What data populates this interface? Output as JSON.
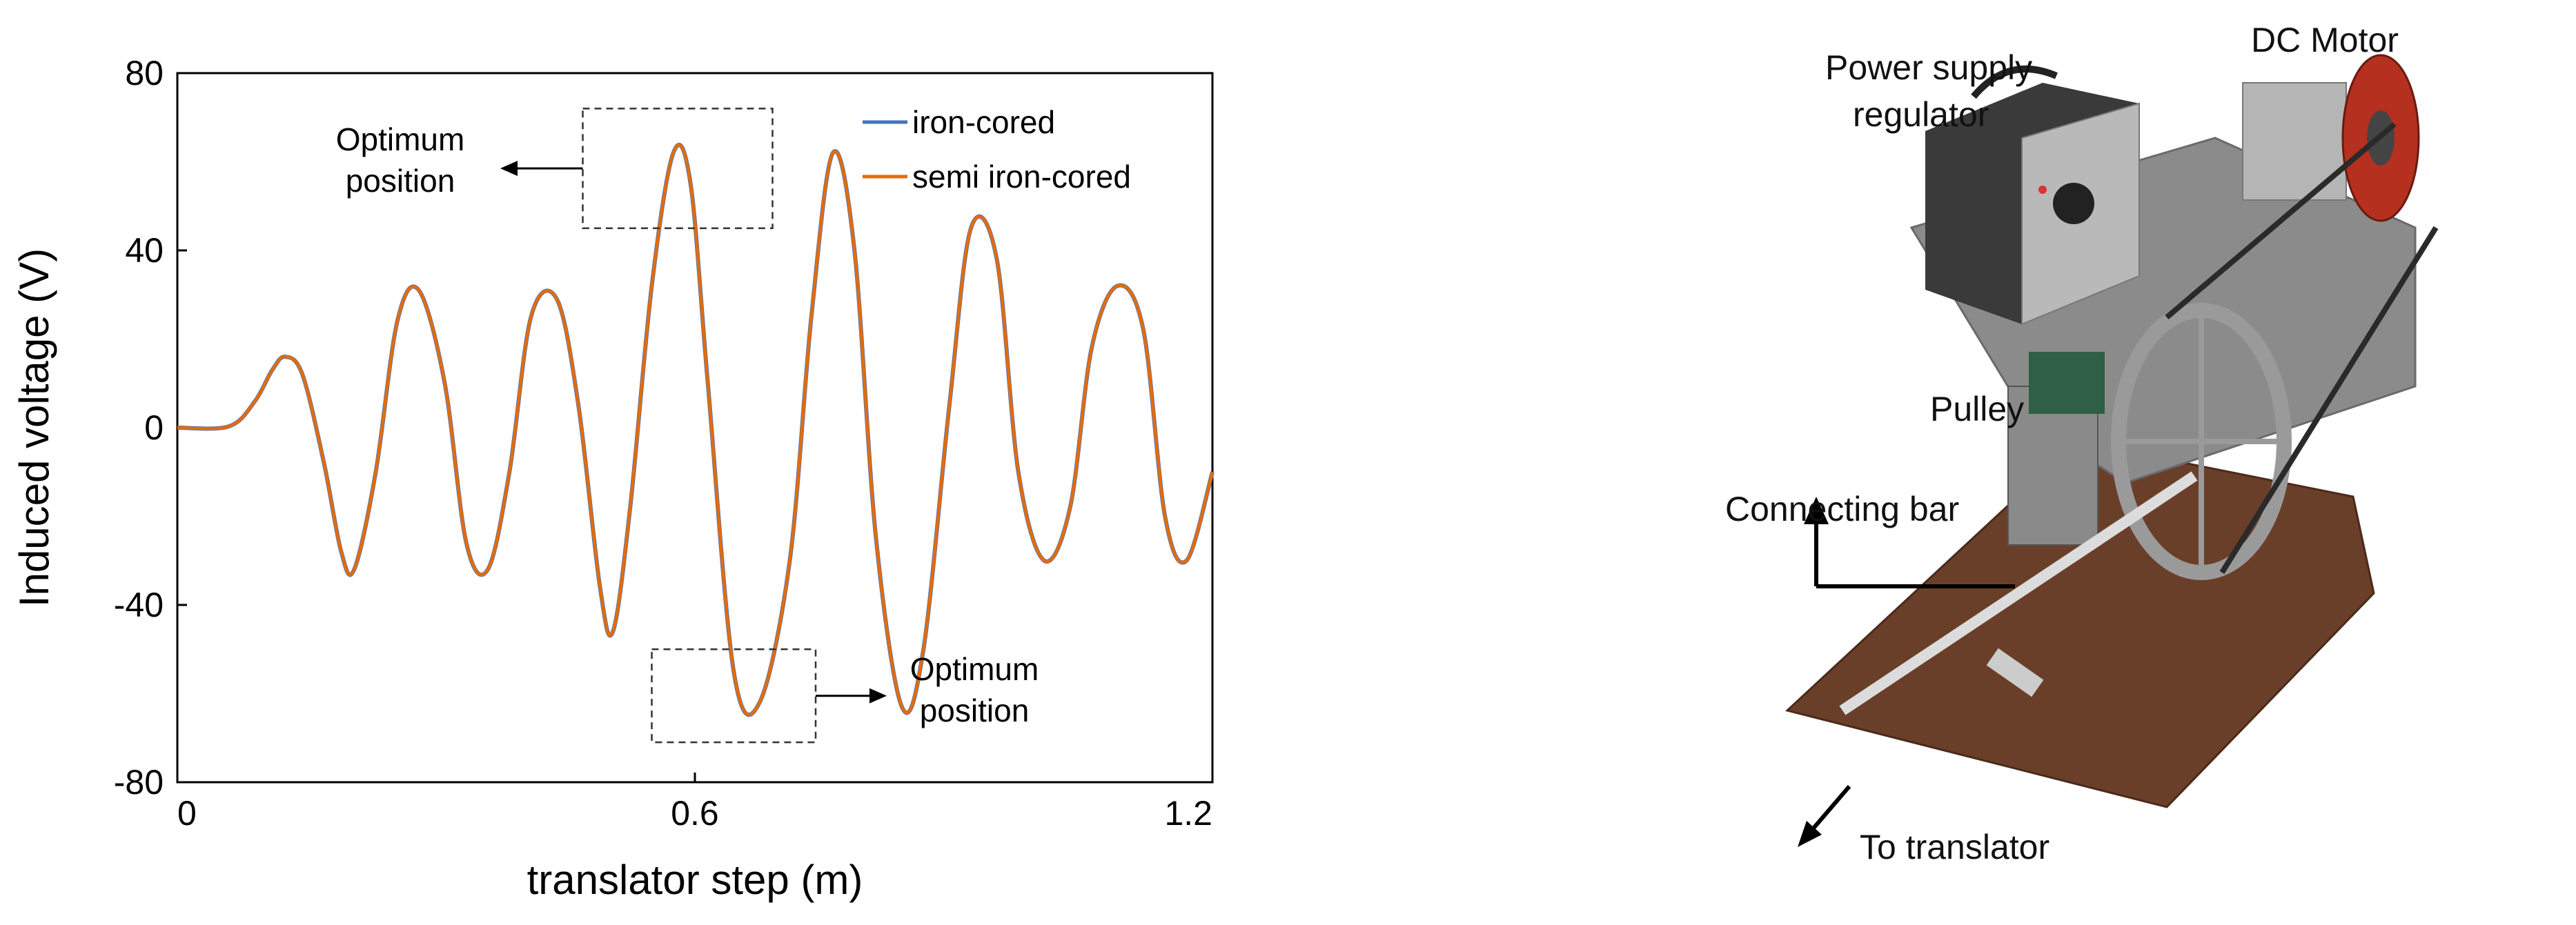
{
  "chart_data": {
    "type": "line",
    "xlabel": "translator step (m)",
    "ylabel": "Induced voltage (V)",
    "xlim": [
      0,
      1.2
    ],
    "ylim": [
      -80,
      80
    ],
    "x_ticks": [
      0,
      0.6,
      1.2
    ],
    "x_tick_labels": [
      "0",
      "0.6",
      "1.2"
    ],
    "y_ticks": [
      -80,
      -40,
      0,
      40,
      80
    ],
    "y_tick_labels": [
      "-80",
      "-40",
      "0",
      "40",
      "80"
    ],
    "grid": false,
    "legend_position": "top-right",
    "series": [
      {
        "name": "iron-cored",
        "color": "#4472C4",
        "x": [
          0,
          0.06,
          0.09,
          0.11,
          0.125,
          0.145,
          0.17,
          0.19,
          0.205,
          0.23,
          0.255,
          0.28,
          0.31,
          0.335,
          0.36,
          0.385,
          0.41,
          0.44,
          0.465,
          0.49,
          0.505,
          0.525,
          0.55,
          0.575,
          0.595,
          0.615,
          0.645,
          0.675,
          0.71,
          0.735,
          0.76,
          0.785,
          0.81,
          0.84,
          0.865,
          0.895,
          0.92,
          0.95,
          0.975,
          1.005,
          1.035,
          1.06,
          1.09,
          1.12,
          1.145,
          1.17,
          1.2
        ],
        "y": [
          0,
          0.3,
          6,
          13,
          16,
          12,
          -8,
          -28,
          -32,
          -10,
          24,
          31,
          10,
          -26,
          -32,
          -10,
          25,
          29,
          5,
          -36,
          -46,
          -18,
          32,
          62,
          55,
          10,
          -55,
          -62,
          -30,
          25,
          62,
          40,
          -25,
          -63,
          -50,
          5,
          45,
          38,
          -10,
          -30,
          -18,
          18,
          32,
          22,
          -20,
          -30,
          -10
        ]
      },
      {
        "name": "semi iron-cored",
        "color": "#E36C0A",
        "x": [
          0,
          0.06,
          0.09,
          0.11,
          0.125,
          0.145,
          0.17,
          0.19,
          0.205,
          0.23,
          0.255,
          0.28,
          0.31,
          0.335,
          0.36,
          0.385,
          0.41,
          0.44,
          0.465,
          0.49,
          0.505,
          0.525,
          0.55,
          0.575,
          0.595,
          0.615,
          0.645,
          0.675,
          0.71,
          0.735,
          0.76,
          0.785,
          0.81,
          0.84,
          0.865,
          0.895,
          0.92,
          0.95,
          0.975,
          1.005,
          1.035,
          1.06,
          1.09,
          1.12,
          1.145,
          1.17,
          1.2
        ],
        "y": [
          0,
          0.3,
          6,
          13,
          16,
          12,
          -8,
          -28,
          -32,
          -10,
          24,
          31,
          10,
          -26,
          -32,
          -10,
          25,
          29,
          5,
          -36,
          -46,
          -18,
          32,
          62,
          55,
          10,
          -55,
          -62,
          -30,
          25,
          62,
          40,
          -25,
          -63,
          -50,
          5,
          45,
          38,
          -10,
          -30,
          -18,
          18,
          32,
          22,
          -20,
          -30,
          -10
        ]
      }
    ],
    "annotations": [
      {
        "text_line1": "Optimum",
        "text_line2": "position",
        "box_x": [
          0.47,
          0.69
        ],
        "box_y": [
          45,
          72
        ]
      },
      {
        "text_line1": "Optimum",
        "text_line2": "position",
        "box_x": [
          0.55,
          0.74
        ],
        "box_y": [
          -71,
          -50
        ]
      }
    ]
  },
  "photo": {
    "labels": {
      "power_supply_line1": "Power supply",
      "power_supply_line2": "regulator",
      "dc_motor": "DC Motor",
      "pulley": "Pulley",
      "connecting_bar": "Connecting bar",
      "to_translator": "To translator"
    }
  }
}
